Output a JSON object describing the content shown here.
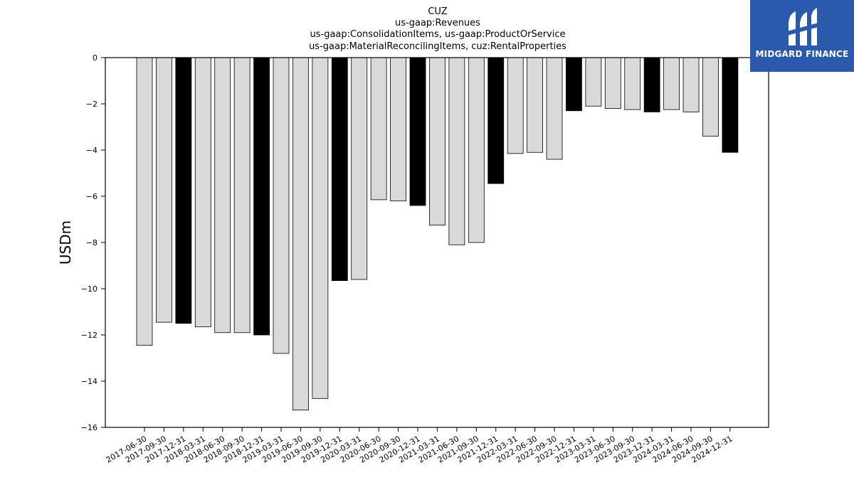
{
  "brand": {
    "name": "MIDGARD FINANCE",
    "color": "#2b5aad"
  },
  "chart_data": {
    "type": "bar",
    "title_lines": [
      "CUZ",
      "us-gaap:Revenues",
      "us-gaap:ConsolidationItems, us-gaap:ProductOrService",
      "us-gaap:MaterialReconcilingItems, cuz:RentalProperties"
    ],
    "ylabel": "USDm",
    "xlabel": "",
    "ylim": [
      -16,
      0
    ],
    "yticks": [
      0,
      -2,
      -4,
      -6,
      -8,
      -10,
      -12,
      -14,
      -16
    ],
    "grid": false,
    "categories": [
      "2017-06-30",
      "2017-09-30",
      "2017-12-31",
      "2018-03-31",
      "2018-06-30",
      "2018-09-30",
      "2018-12-31",
      "2019-03-31",
      "2019-06-30",
      "2019-09-30",
      "2019-12-31",
      "2020-03-31",
      "2020-06-30",
      "2020-09-30",
      "2020-12-31",
      "2021-03-31",
      "2021-06-30",
      "2021-09-30",
      "2021-12-31",
      "2022-03-31",
      "2022-06-30",
      "2022-09-30",
      "2022-12-31",
      "2023-03-31",
      "2023-06-30",
      "2023-09-30",
      "2023-12-31",
      "2024-03-31",
      "2024-06-30",
      "2024-09-30",
      "2024-12-31"
    ],
    "values": [
      -12.45,
      -11.45,
      -11.5,
      -11.65,
      -11.9,
      -11.9,
      -12.0,
      -12.8,
      -15.25,
      -14.75,
      -9.65,
      -9.6,
      -6.15,
      -6.2,
      -6.4,
      -7.25,
      -8.1,
      -8.0,
      -5.45,
      -4.15,
      -4.1,
      -4.4,
      -2.3,
      -2.1,
      -2.2,
      -2.25,
      -2.35,
      -2.25,
      -2.35,
      -3.4,
      -4.1
    ],
    "colors": {
      "quarter": "#d9d9d9",
      "year_end": "#000000",
      "edge": "#000000"
    }
  }
}
